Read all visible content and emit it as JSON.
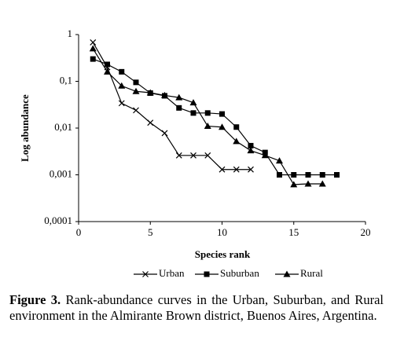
{
  "chart_data": {
    "type": "line",
    "ylabel": "Log abundance",
    "xlabel": "Species rank",
    "ylog": true,
    "xlim": [
      0,
      20
    ],
    "xticks": [
      0,
      5,
      10,
      15,
      20
    ],
    "ylim": [
      0.0001,
      1
    ],
    "yticks": [
      {
        "value": 0.0001,
        "label": "0,0001"
      },
      {
        "value": 0.001,
        "label": "0,001"
      },
      {
        "value": 0.01,
        "label": "0,01"
      },
      {
        "value": 0.1,
        "label": "0,1"
      },
      1
    ],
    "grid": false,
    "legend": "bottom",
    "series": [
      {
        "name": "Urban",
        "color": "#000000",
        "marker": "x",
        "x": [
          1,
          2,
          3,
          4,
          5,
          6,
          7,
          8,
          9,
          10,
          11,
          12
        ],
        "values": [
          0.68,
          0.2,
          0.034,
          0.024,
          0.013,
          0.0078,
          0.0026,
          0.0026,
          0.0026,
          0.0013,
          0.0013,
          0.0013
        ]
      },
      {
        "name": "Suburban",
        "color": "#000000",
        "marker": "square",
        "x": [
          1,
          2,
          3,
          4,
          5,
          6,
          7,
          8,
          9,
          10,
          11,
          12,
          13,
          14,
          15,
          16,
          17,
          18
        ],
        "values": [
          0.3,
          0.23,
          0.16,
          0.095,
          0.056,
          0.049,
          0.027,
          0.021,
          0.021,
          0.02,
          0.0105,
          0.0042,
          0.003,
          0.001,
          0.001,
          0.001,
          0.001,
          0.001
        ]
      },
      {
        "name": "Rural",
        "color": "#000000",
        "marker": "triangle",
        "x": [
          1,
          2,
          3,
          4,
          5,
          6,
          7,
          8,
          9,
          10,
          11,
          12,
          13,
          14,
          15,
          16,
          17
        ],
        "values": [
          0.5,
          0.16,
          0.08,
          0.061,
          0.057,
          0.05,
          0.045,
          0.035,
          0.011,
          0.0105,
          0.0052,
          0.0033,
          0.0026,
          0.002,
          0.00062,
          0.00064,
          0.00064
        ]
      }
    ]
  },
  "caption": {
    "label": "Figure 3.",
    "text": "Rank-abundance curves in the Urban, Suburban, and Rural environment in the Almirante Brown district, Buenos Aires, Argentina."
  }
}
